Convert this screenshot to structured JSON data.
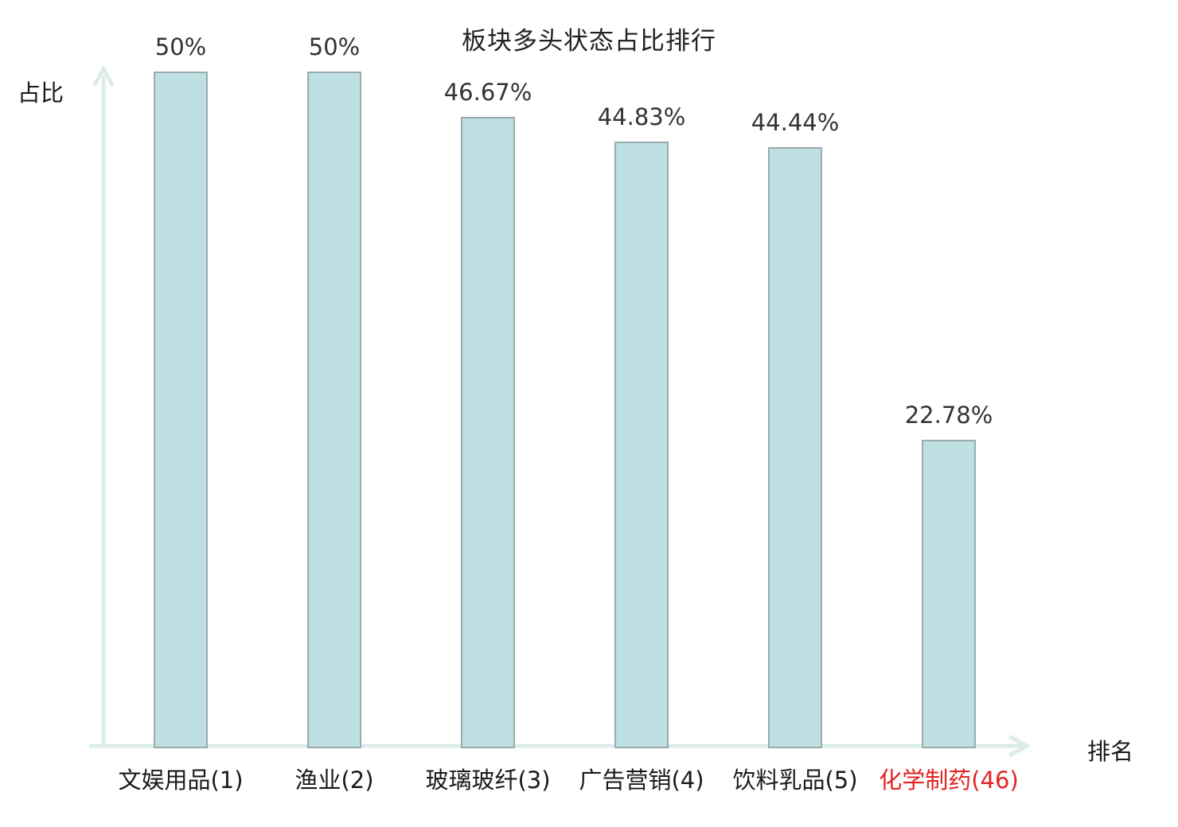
{
  "chart_data": {
    "type": "bar",
    "title": "板块多头状态占比排行",
    "xlabel": "排名",
    "ylabel": "占比",
    "categories": [
      "文娱用品(1)",
      "渔业(2)",
      "玻璃玻纤(3)",
      "广告营销(4)",
      "饮料乳品(5)",
      "化学制药(46)"
    ],
    "values": [
      50,
      50,
      46.67,
      44.83,
      44.44,
      22.78
    ],
    "value_labels": [
      "50%",
      "50%",
      "46.67%",
      "44.83%",
      "44.44%",
      "22.78%"
    ],
    "ylim": [
      0,
      50
    ],
    "grid": false,
    "legend": null,
    "bar_fill": "#bee0e3",
    "bar_border": "#9aabae",
    "axis_color": "#dcede8",
    "label_color": "#1a1a1a",
    "value_label_color": "#333333",
    "highlight_index": 5,
    "highlight_color": "#e32222"
  }
}
